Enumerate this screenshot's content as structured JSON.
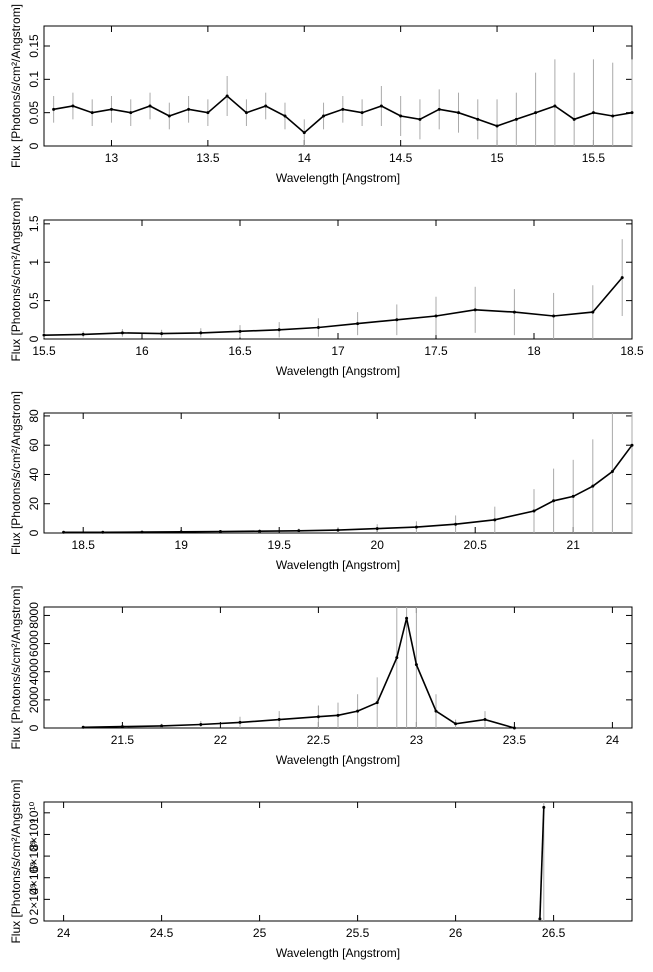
{
  "chart_data": [
    {
      "type": "line",
      "xlabel": "Wavelength [Angstrom]",
      "ylabel": "Flux [Photons/s/cm²/Angstrom]",
      "xlim": [
        12.65,
        15.7
      ],
      "ylim": [
        0,
        0.18
      ],
      "xticks": [
        13,
        13.5,
        14,
        14.5,
        15,
        15.5
      ],
      "xtick_labels": [
        "13",
        "13.5",
        "14",
        "14.5",
        "15",
        "15.5"
      ],
      "yticks": [
        0,
        0.05,
        0.1,
        0.15
      ],
      "ytick_labels": [
        "0",
        "0.05",
        "0.1",
        "0.15"
      ],
      "series": [
        {
          "x": [
            12.7,
            12.8,
            12.9,
            13.0,
            13.1,
            13.2,
            13.3,
            13.4,
            13.5,
            13.6,
            13.7,
            13.8,
            13.9,
            14.0,
            14.1,
            14.2,
            14.3,
            14.4,
            14.5,
            14.6,
            14.7,
            14.8,
            14.9,
            15.0,
            15.1,
            15.2,
            15.3,
            15.4,
            15.5,
            15.6,
            15.7
          ],
          "y": [
            0.055,
            0.06,
            0.05,
            0.055,
            0.05,
            0.06,
            0.045,
            0.055,
            0.05,
            0.075,
            0.05,
            0.06,
            0.045,
            0.02,
            0.045,
            0.055,
            0.05,
            0.06,
            0.045,
            0.04,
            0.055,
            0.05,
            0.04,
            0.03,
            0.04,
            0.05,
            0.06,
            0.04,
            0.05,
            0.045,
            0.05
          ],
          "yerr": [
            0.02,
            0.02,
            0.02,
            0.02,
            0.02,
            0.02,
            0.02,
            0.02,
            0.02,
            0.03,
            0.02,
            0.02,
            0.02,
            0.02,
            0.02,
            0.02,
            0.02,
            0.03,
            0.03,
            0.03,
            0.03,
            0.03,
            0.03,
            0.04,
            0.04,
            0.06,
            0.07,
            0.07,
            0.08,
            0.08,
            0.08
          ]
        }
      ]
    },
    {
      "type": "line",
      "xlabel": "Wavelength [Angstrom]",
      "ylabel": "Flux [Photons/s/cm²/Angstrom]",
      "xlim": [
        15.5,
        18.5
      ],
      "ylim": [
        0,
        1.55
      ],
      "xticks": [
        15.5,
        16,
        16.5,
        17,
        17.5,
        18,
        18.5
      ],
      "xtick_labels": [
        "15.5",
        "16",
        "16.5",
        "17",
        "17.5",
        "18",
        "18.5"
      ],
      "yticks": [
        0,
        0.5,
        1,
        1.5
      ],
      "ytick_labels": [
        "0",
        "0.5",
        "1",
        "1.5"
      ],
      "series": [
        {
          "x": [
            15.5,
            15.7,
            15.9,
            16.1,
            16.3,
            16.5,
            16.7,
            16.9,
            17.1,
            17.3,
            17.5,
            17.7,
            17.9,
            18.1,
            18.3,
            18.45
          ],
          "y": [
            0.05,
            0.06,
            0.08,
            0.07,
            0.08,
            0.1,
            0.12,
            0.15,
            0.2,
            0.25,
            0.3,
            0.38,
            0.35,
            0.3,
            0.35,
            0.8
          ],
          "yerr": [
            0.03,
            0.04,
            0.05,
            0.05,
            0.06,
            0.08,
            0.1,
            0.12,
            0.15,
            0.2,
            0.25,
            0.3,
            0.3,
            0.3,
            0.35,
            0.5
          ]
        }
      ]
    },
    {
      "type": "line",
      "xlabel": "Wavelength [Angstrom]",
      "ylabel": "Flux [Photons/s/cm²/Angstrom]",
      "xlim": [
        18.3,
        21.3
      ],
      "ylim": [
        0,
        82
      ],
      "xticks": [
        18.5,
        19,
        19.5,
        20,
        20.5,
        21
      ],
      "xtick_labels": [
        "18.5",
        "19",
        "19.5",
        "20",
        "20.5",
        "21"
      ],
      "yticks": [
        0,
        20,
        40,
        60,
        80
      ],
      "ytick_labels": [
        "0",
        "20",
        "40",
        "60",
        "80"
      ],
      "series": [
        {
          "x": [
            18.4,
            18.6,
            18.8,
            19.0,
            19.2,
            19.4,
            19.6,
            19.8,
            20.0,
            20.2,
            20.4,
            20.6,
            20.8,
            20.9,
            21.0,
            21.1,
            21.2,
            21.3
          ],
          "y": [
            0.5,
            0.5,
            0.6,
            0.8,
            1,
            1.2,
            1.5,
            2,
            3,
            4,
            6,
            9,
            15,
            22,
            25,
            32,
            42,
            60
          ],
          "yerr": [
            0.5,
            0.5,
            0.6,
            0.8,
            1,
            1.2,
            1.5,
            2,
            3,
            4,
            6,
            9,
            15,
            22,
            25,
            32,
            42,
            60
          ]
        }
      ]
    },
    {
      "type": "line",
      "xlabel": "Wavelength [Angstrom]",
      "ylabel": "Flux [Photons/s/cm²/Angstrom]",
      "xlim": [
        21.1,
        24.1
      ],
      "ylim": [
        0,
        8600
      ],
      "xticks": [
        21.5,
        22,
        22.5,
        23,
        23.5,
        24
      ],
      "xtick_labels": [
        "21.5",
        "22",
        "22.5",
        "23",
        "23.5",
        "24"
      ],
      "yticks": [
        0,
        2000,
        4000,
        6000,
        8000
      ],
      "ytick_labels": [
        "0",
        "2000",
        "4000",
        "6000",
        "8000"
      ],
      "series": [
        {
          "x": [
            21.3,
            21.5,
            21.7,
            21.9,
            22.1,
            22.3,
            22.5,
            22.6,
            22.7,
            22.8,
            22.9,
            22.95,
            23.0,
            23.1,
            23.2,
            23.35,
            23.5
          ],
          "y": [
            50,
            100,
            150,
            250,
            400,
            600,
            800,
            900,
            1200,
            1800,
            5000,
            7800,
            4500,
            1200,
            300,
            600,
            0
          ],
          "yerr": [
            50,
            100,
            150,
            250,
            400,
            600,
            800,
            900,
            1200,
            1800,
            5000,
            7800,
            4500,
            1200,
            300,
            600,
            0
          ]
        }
      ]
    },
    {
      "type": "line",
      "xlabel": "Wavelength [Angstrom]",
      "ylabel": "Flux [Photons/s/cm²/Angstrom]",
      "xlim": [
        23.9,
        26.9
      ],
      "ylim": [
        0,
        11000000000
      ],
      "xticks": [
        24,
        24.5,
        25,
        25.5,
        26,
        26.5
      ],
      "xtick_labels": [
        "24",
        "24.5",
        "25",
        "25.5",
        "26",
        "26.5"
      ],
      "yticks": [
        0,
        2000000000,
        4000000000,
        6000000000,
        8000000000,
        10000000000
      ],
      "ytick_labels": [
        "0",
        "2×10⁹",
        "4×10⁹",
        "6×10⁹",
        "8×10⁹",
        "10¹⁰"
      ],
      "series": [
        {
          "x": [
            26.43,
            26.45
          ],
          "y": [
            200000000,
            10500000000
          ],
          "yerr": [
            200000000,
            10500000000
          ]
        }
      ]
    }
  ]
}
